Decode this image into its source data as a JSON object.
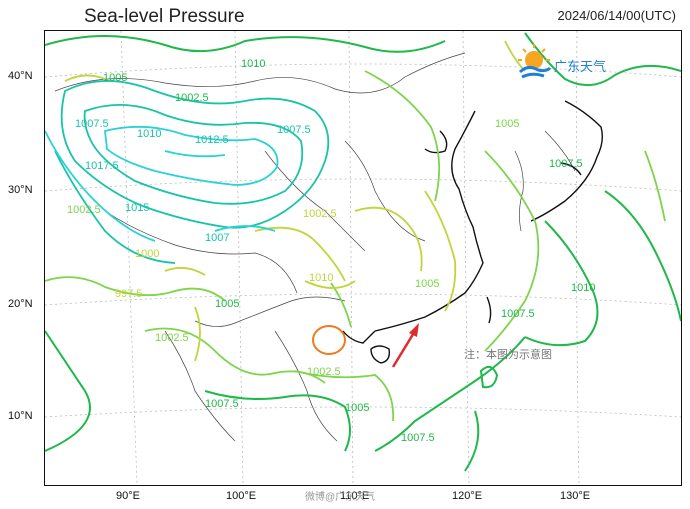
{
  "header": {
    "title": "Sea-level Pressure",
    "timestamp": "2024/06/14/00(UTC)"
  },
  "axes": {
    "lat_labels": [
      "40°N",
      "30°N",
      "20°N",
      "10°N"
    ],
    "lon_labels": [
      "90°E",
      "100°E",
      "110°E",
      "120°E",
      "130°E"
    ]
  },
  "contour_labels": [
    "1005",
    "1002.5",
    "1007.5",
    "1010",
    "1012.5",
    "1007.5",
    "1017.5",
    "1015",
    "1002.5",
    "1010",
    "1000",
    "997.5",
    "1002.5",
    "1007",
    "1005",
    "1002.5",
    "1010",
    "1005",
    "1002.5",
    "1005",
    "1007.5",
    "1005",
    "1007.5",
    "1007.5",
    "1007.5",
    "1010"
  ],
  "logo": {
    "text": "广东天气"
  },
  "note": "注：本图为示意图",
  "watermark": "微博@广东天气",
  "colors": {
    "dark_green": "#1fb84a",
    "light_green": "#7ed44a",
    "yellow_green": "#c2d43a",
    "teal": "#18c4a8",
    "cyan": "#28d2d6",
    "marker_orange": "#f07a22",
    "arrow_red": "#e02b2b"
  }
}
